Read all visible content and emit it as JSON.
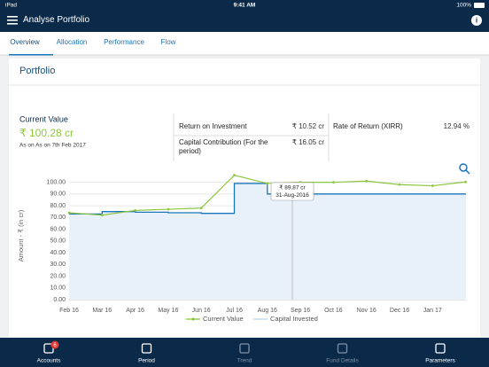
{
  "status_bar": {
    "carrier": "iPad",
    "time": "9:41 AM",
    "battery": "100%"
  },
  "header": {
    "title": "Analyse Portfolio"
  },
  "tabs": [
    "Overview",
    "Allocation",
    "Performance",
    "Flow"
  ],
  "section_title": "Portfolio",
  "summary": {
    "label": "Current Value",
    "value": "₹ 100.28 cr",
    "as_on": "As on As on 7th Feb 2017"
  },
  "metrics": [
    {
      "label": "Return on Investment",
      "value": "₹ 10.52 cr"
    },
    {
      "label": "Capital Contribution (For the period)",
      "value": "₹ 16.05 cr"
    },
    {
      "label": "Rate of Return (XIRR)",
      "value": "12.94 %"
    }
  ],
  "chart_data": {
    "type": "line",
    "y_label": "Amount - ₹ (in cr)",
    "categories": [
      "Feb 16",
      "Mar 16",
      "Apr 16",
      "May 16",
      "Jun 16",
      "Jul 16",
      "Aug 16",
      "Sep 16",
      "Oct 16",
      "Nov 16",
      "Dec 16",
      "Jan 17",
      null
    ],
    "series": [
      {
        "name": "Current Value",
        "color": "#8dc63f",
        "values": [
          74,
          72,
          76,
          77,
          78,
          106,
          99,
          100,
          100,
          101,
          98,
          97,
          100.28
        ]
      },
      {
        "name": "Capital Invested",
        "color": "#1b75bb",
        "values": [
          73,
          75,
          74.5,
          74,
          73.5,
          99,
          90,
          90,
          90,
          90,
          90,
          90,
          90
        ]
      }
    ],
    "ylim": [
      0,
      108
    ],
    "yticks": [
      {
        "value": 0,
        "label": "0.00"
      },
      {
        "value": 10,
        "label": "10.00"
      },
      {
        "value": 20,
        "label": "20.00"
      },
      {
        "value": 30,
        "label": "30.00"
      },
      {
        "value": 40,
        "label": "40.00"
      },
      {
        "value": 50,
        "label": "50.00"
      },
      {
        "value": 60,
        "label": "60.00"
      },
      {
        "value": 70,
        "label": "70.00"
      },
      {
        "value": 80,
        "label": "80.00"
      },
      {
        "value": 90,
        "label": "90.00"
      },
      {
        "value": 100,
        "label": "100.00"
      }
    ],
    "grid": true,
    "tooltip": {
      "value": "₹ 89.87 cr",
      "date": "31-Aug-2016"
    }
  },
  "bottom_tabs": [
    {
      "label": "Accounts",
      "badge": "6"
    },
    {
      "label": "Period"
    },
    {
      "label": "Trend"
    },
    {
      "label": "Fund Details"
    },
    {
      "label": "Parameters"
    }
  ]
}
